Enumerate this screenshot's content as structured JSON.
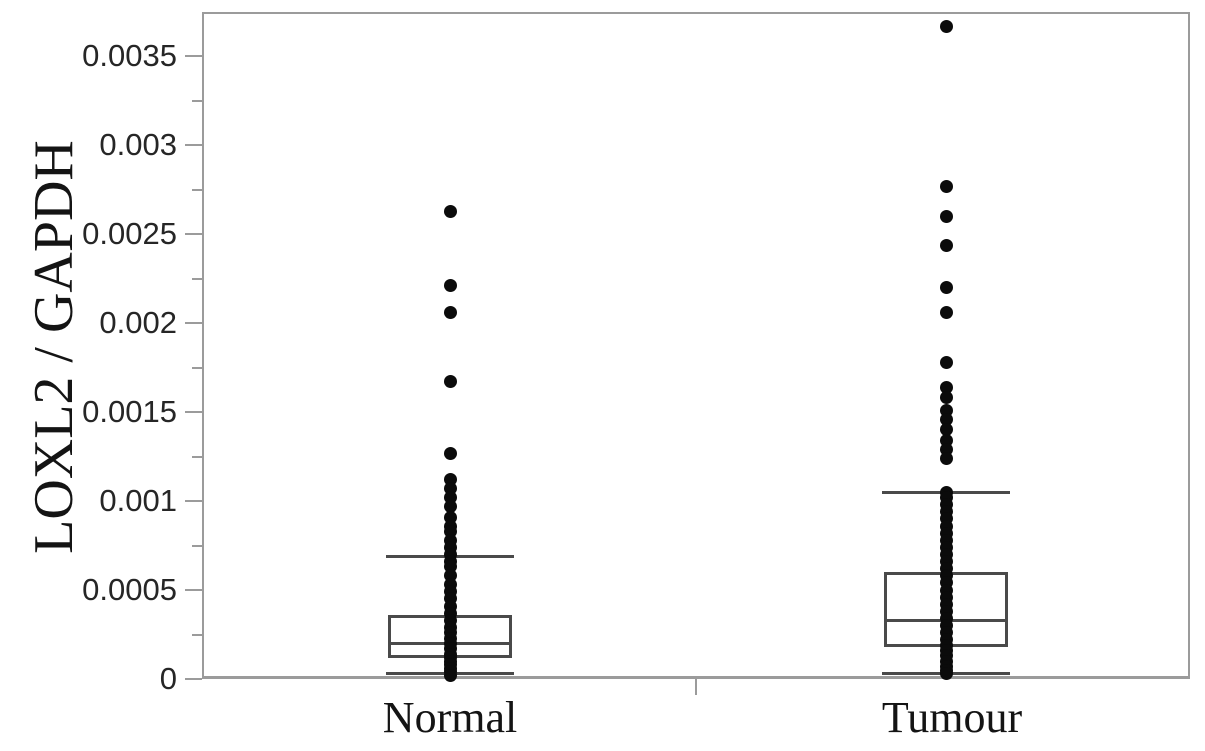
{
  "figure": {
    "background": "#ffffff",
    "frame_color": "#9b9b9b",
    "box_color": "#4a4a4a",
    "dot_color": "#0b0b0b",
    "text_color": "#141414"
  },
  "chart_data": {
    "type": "boxplot-with-points",
    "title": "",
    "xlabel": "",
    "ylabel": "LOXL2 / GAPDH",
    "categories": [
      "Normal",
      "Tumour"
    ],
    "ylim": [
      0,
      0.00375
    ],
    "grid": false,
    "legend": false,
    "yticks_major": [
      {
        "value": 0.0,
        "label": "0"
      },
      {
        "value": 0.0005,
        "label": "0.0005"
      },
      {
        "value": 0.001,
        "label": "0.001"
      },
      {
        "value": 0.0015,
        "label": "0.0015"
      },
      {
        "value": 0.002,
        "label": "0.002"
      },
      {
        "value": 0.0025,
        "label": "0.0025"
      },
      {
        "value": 0.003,
        "label": "0.003"
      },
      {
        "value": 0.0035,
        "label": "0.0035"
      }
    ],
    "ytick_minor_step": 0.00025,
    "groups": [
      {
        "name": "Normal",
        "box": {
          "q1": 0.00012,
          "median": 0.0002,
          "q3": 0.00036,
          "lower_fence": 3e-05,
          "upper_fence": 0.00069
        },
        "points": [
          0.00263,
          0.00221,
          0.00206,
          0.00167,
          0.00127,
          0.00112,
          0.00107,
          0.00102,
          0.00097,
          0.00091,
          0.00086,
          0.00083,
          0.00078,
          0.00074,
          0.0007,
          0.00066,
          0.00063,
          0.00058,
          0.00053,
          0.00049,
          0.00045,
          0.00041,
          0.00037,
          0.00033,
          0.00029,
          0.00026,
          0.00023,
          0.0002,
          0.00017,
          0.00014,
          0.00012,
          0.0001,
          8e-05,
          6e-05,
          4e-05,
          2e-05
        ]
      },
      {
        "name": "Tumour",
        "box": {
          "q1": 0.00018,
          "median": 0.00033,
          "q3": 0.0006,
          "lower_fence": 3e-05,
          "upper_fence": 0.00105
        },
        "points": [
          0.00367,
          0.00277,
          0.0026,
          0.00244,
          0.0022,
          0.00206,
          0.00178,
          0.00164,
          0.00158,
          0.00151,
          0.00146,
          0.0014,
          0.00134,
          0.00129,
          0.00124,
          0.00105,
          0.00102,
          0.00098,
          0.00094,
          0.0009,
          0.00086,
          0.00082,
          0.00078,
          0.00074,
          0.0007,
          0.00066,
          0.00062,
          0.00058,
          0.00054,
          0.0005,
          0.00046,
          0.00042,
          0.00038,
          0.00034,
          0.0003,
          0.00026,
          0.00022,
          0.00019,
          0.00016,
          0.00013,
          0.0001,
          7e-05,
          5e-05,
          3e-05
        ]
      }
    ]
  }
}
